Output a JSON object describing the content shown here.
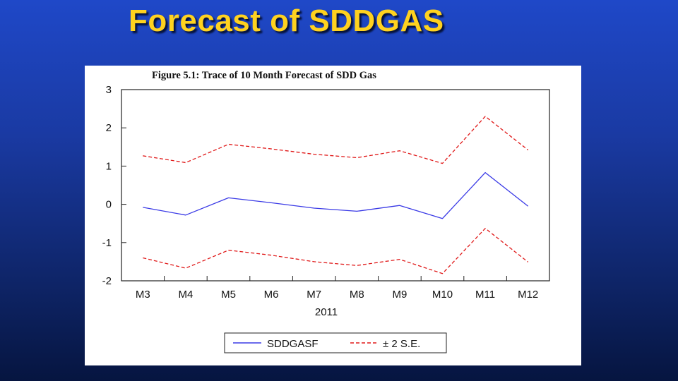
{
  "slide": {
    "title": "Forecast of SDDGAS"
  },
  "chart_data": {
    "type": "line",
    "title": "Figure 5.1: Trace of 10 Month Forecast of SDD Gas",
    "xlabel": "2011",
    "ylabel": "",
    "categories": [
      "M3",
      "M4",
      "M5",
      "M6",
      "M7",
      "M8",
      "M9",
      "M10",
      "M11",
      "M12"
    ],
    "ylim": [
      -2,
      3
    ],
    "yticks": [
      "3",
      "2",
      "1",
      "0",
      "-1",
      "-2"
    ],
    "grid": false,
    "legend_position": "bottom",
    "series": [
      {
        "name": "SDDGASF",
        "color": "#3a3ae6",
        "style": "solid",
        "values": [
          -0.08,
          -0.28,
          0.17,
          0.04,
          -0.1,
          -0.18,
          -0.03,
          -0.37,
          0.83,
          -0.05
        ]
      },
      {
        "name": "± 2 S.E.",
        "color": "#e01818",
        "style": "dashed",
        "values": [
          1.27,
          1.09,
          1.57,
          1.45,
          1.31,
          1.22,
          1.4,
          1.07,
          2.3,
          1.42
        ]
      },
      {
        "name": "",
        "color": "#e01818",
        "style": "dashed",
        "values": [
          -1.4,
          -1.67,
          -1.2,
          -1.33,
          -1.5,
          -1.6,
          -1.44,
          -1.81,
          -0.63,
          -1.51
        ]
      }
    ],
    "legend": [
      {
        "label": "SDDGASF",
        "color": "#3a3ae6",
        "style": "solid"
      },
      {
        "label": "± 2 S.E.",
        "color": "#e01818",
        "style": "dashed"
      }
    ]
  }
}
